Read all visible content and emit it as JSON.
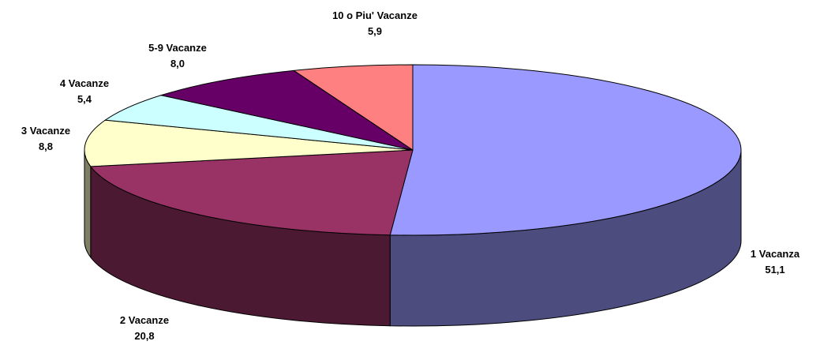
{
  "chart_data": {
    "type": "pie",
    "categories": [
      "1 Vacanza",
      "2 Vacanze",
      "3 Vacanze",
      "4 Vacanze",
      "5-9 Vacanze",
      "10 o Piu' Vacanze"
    ],
    "values": [
      51.1,
      20.8,
      8.8,
      5.4,
      8.0,
      5.9
    ],
    "value_labels": [
      "51,1",
      "20,8",
      "8,8",
      "5,4",
      "8,0",
      "5,9"
    ],
    "colors": [
      "#9999ff",
      "#993366",
      "#ffffcc",
      "#ccffff",
      "#660066",
      "#ff8080"
    ]
  }
}
